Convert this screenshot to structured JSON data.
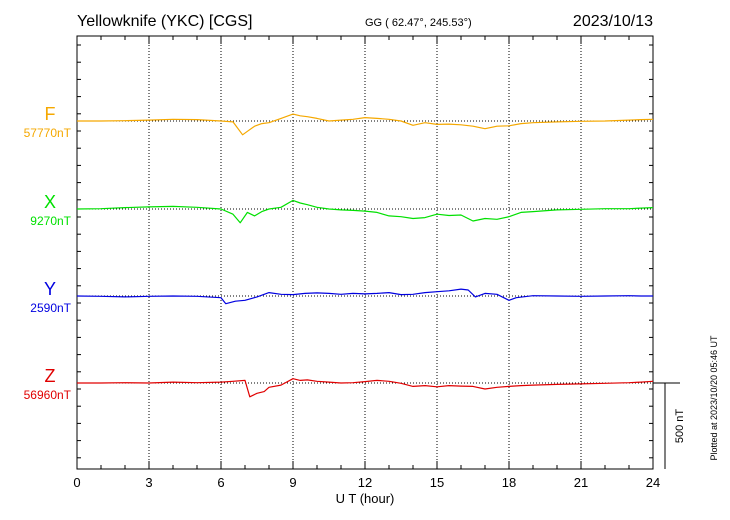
{
  "header": {
    "station": "Yellowknife (YKC)  [CGS]",
    "coords": "GG ( 62.47°, 245.53°)",
    "date": "2023/10/13"
  },
  "footer": {
    "plotted": "Plotted at 2023/10/20 05:46 UT",
    "scale_label": "500 nT"
  },
  "colors": {
    "F": "#f5a800",
    "X": "#00e000",
    "Y": "#0000e0",
    "Z": "#e00000"
  },
  "chart_data": {
    "type": "line",
    "xlabel": "U T (hour)",
    "xlim": [
      0,
      24
    ],
    "x_ticks": [
      0,
      3,
      6,
      9,
      12,
      15,
      18,
      21,
      24
    ],
    "x_tick_labels": [
      "0",
      "3",
      "6",
      "9",
      "12",
      "15",
      "18",
      "21",
      "24"
    ],
    "y_unit": "nT",
    "scale_bar_nT": 500,
    "grid": true,
    "series": [
      {
        "name": "F",
        "baseline_label": "57770nT",
        "baseline": 57770,
        "x": [
          0,
          1,
          2,
          3,
          4,
          5,
          6,
          6.5,
          6.9,
          7.1,
          7.4,
          7.7,
          8,
          8.5,
          9,
          9.3,
          9.6,
          10,
          10.5,
          11,
          11.5,
          12,
          12.5,
          13,
          13.5,
          14,
          14.5,
          15,
          15.5,
          16,
          16.5,
          17,
          17.5,
          18,
          18.5,
          19,
          20,
          21,
          22,
          23,
          23.5,
          24
        ],
        "y": [
          57770,
          57770,
          57772,
          57775,
          57780,
          57778,
          57770,
          57765,
          57690,
          57710,
          57740,
          57755,
          57760,
          57785,
          57810,
          57800,
          57795,
          57785,
          57770,
          57775,
          57780,
          57790,
          57785,
          57780,
          57770,
          57745,
          57760,
          57750,
          57752,
          57748,
          57740,
          57725,
          57740,
          57742,
          57755,
          57760,
          57765,
          57768,
          57770,
          57775,
          57778,
          57780
        ]
      },
      {
        "name": "X",
        "baseline_label": "9270nT",
        "baseline": 9270,
        "x": [
          0,
          1,
          2,
          3,
          4,
          5,
          6,
          6.5,
          6.8,
          7.1,
          7.4,
          7.7,
          8,
          8.5,
          9,
          9.3,
          9.6,
          10,
          10.5,
          11,
          11.5,
          12,
          12.5,
          13,
          13.5,
          14,
          14.5,
          15,
          15.5,
          16,
          16.5,
          17,
          17.5,
          18,
          18.5,
          19,
          20,
          21,
          22,
          23,
          23.5,
          24
        ],
        "y": [
          9270,
          9272,
          9278,
          9282,
          9285,
          9280,
          9270,
          9240,
          9190,
          9250,
          9230,
          9255,
          9270,
          9280,
          9320,
          9305,
          9295,
          9280,
          9270,
          9265,
          9262,
          9258,
          9250,
          9230,
          9225,
          9215,
          9220,
          9240,
          9232,
          9235,
          9200,
          9215,
          9210,
          9225,
          9250,
          9255,
          9265,
          9268,
          9272,
          9272,
          9275,
          9278
        ]
      },
      {
        "name": "Y",
        "baseline_label": "2590nT",
        "baseline": 2590,
        "x": [
          0,
          1,
          2,
          3,
          4,
          5,
          6,
          6.2,
          6.6,
          7,
          7.5,
          8,
          8.5,
          9,
          9.5,
          10,
          10.5,
          11,
          11.5,
          12,
          12.5,
          13,
          13.5,
          14,
          14.5,
          15,
          15.5,
          16,
          16.3,
          16.6,
          17,
          17.5,
          18,
          18.3,
          19,
          20,
          21,
          22,
          23,
          23.5,
          24
        ],
        "y": [
          2590,
          2588,
          2585,
          2588,
          2590,
          2588,
          2580,
          2545,
          2560,
          2565,
          2585,
          2610,
          2600,
          2598,
          2605,
          2608,
          2605,
          2600,
          2605,
          2602,
          2605,
          2610,
          2598,
          2600,
          2610,
          2615,
          2620,
          2630,
          2625,
          2585,
          2605,
          2600,
          2565,
          2580,
          2592,
          2590,
          2588,
          2590,
          2592,
          2590,
          2590
        ]
      },
      {
        "name": "Z",
        "baseline_label": "56960nT",
        "baseline": 56960,
        "x": [
          0,
          1,
          2,
          3,
          4,
          5,
          6,
          6.5,
          7,
          7.2,
          7.5,
          7.8,
          8,
          8.5,
          9,
          9.3,
          9.6,
          10,
          10.5,
          11,
          11.5,
          12,
          12.5,
          13,
          13.5,
          14,
          14.5,
          15,
          15.5,
          16,
          16.5,
          17,
          17.5,
          18,
          18.5,
          19,
          20,
          21,
          22,
          23,
          23.5,
          24
        ],
        "y": [
          56960,
          56960,
          56962,
          56960,
          56965,
          56962,
          56965,
          56970,
          56975,
          56880,
          56900,
          56910,
          56935,
          56948,
          56985,
          56975,
          56978,
          56970,
          56965,
          56960,
          56962,
          56968,
          56975,
          56970,
          56958,
          56940,
          56945,
          56938,
          56945,
          56942,
          56940,
          56925,
          56935,
          56940,
          56945,
          56948,
          56952,
          56955,
          56958,
          56962,
          56965,
          56970
        ]
      }
    ]
  }
}
